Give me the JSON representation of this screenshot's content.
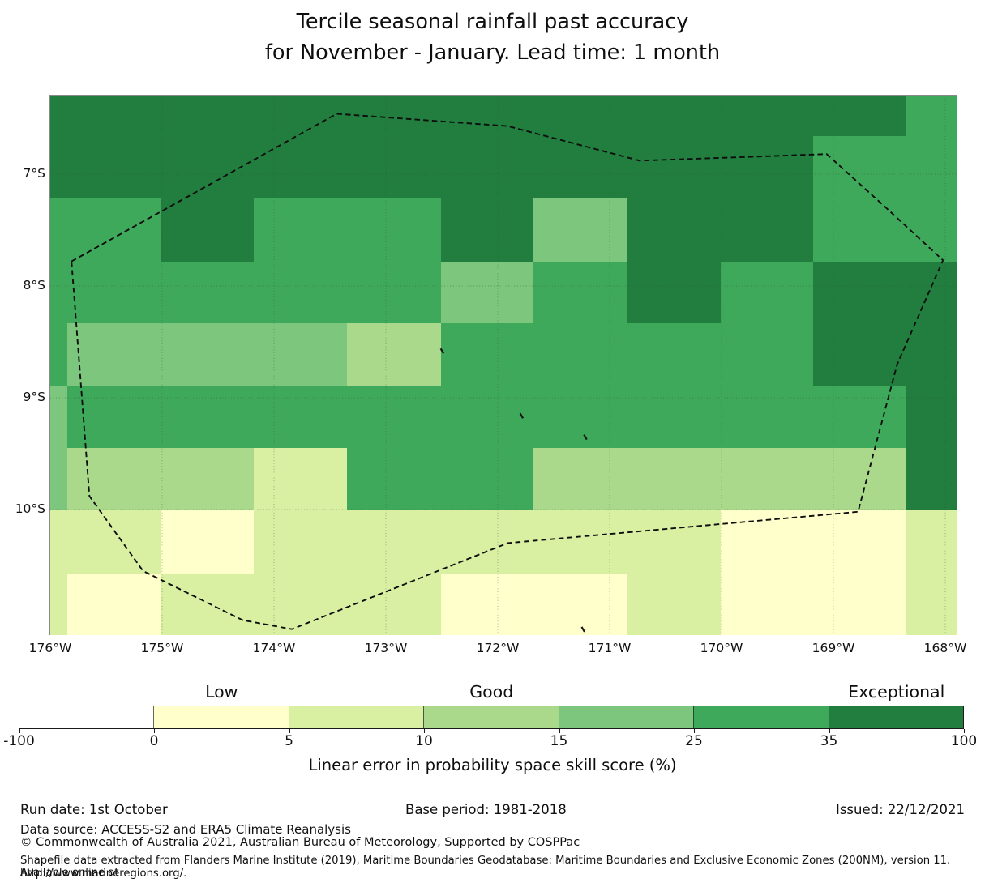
{
  "title": {
    "line1": "Tercile seasonal rainfall past accuracy",
    "line2": "for November - January. Lead time: 1 month"
  },
  "chart_data": {
    "type": "heatmap",
    "title": "Tercile seasonal rainfall past accuracy for November - January. Lead time: 1 month",
    "x_axis": {
      "tick_labels": [
        "176°W",
        "175°W",
        "174°W",
        "173°W",
        "172°W",
        "171°W",
        "170°W",
        "169°W",
        "168°W"
      ],
      "tick_lons_w": [
        176,
        175,
        174,
        173,
        172,
        171,
        170,
        169,
        168
      ]
    },
    "y_axis": {
      "tick_labels": [
        "7°S",
        "8°S",
        "9°S",
        "10°S"
      ],
      "tick_lats_s": [
        7,
        8,
        9,
        10
      ]
    },
    "grid": {
      "lon_edges_w": [
        176.0,
        175.85,
        175.01,
        174.18,
        173.35,
        172.51,
        171.68,
        170.85,
        170.01,
        169.18,
        168.35,
        167.9
      ],
      "lat_edges_s": [
        6.3,
        6.66,
        7.22,
        7.78,
        8.33,
        8.89,
        9.45,
        10.01,
        10.57,
        11.12
      ],
      "bins": {
        "D": "35-100",
        "M": "25-35",
        "L": "15-25",
        "Y": "10-15",
        "P": "5-10",
        "W": "0-5"
      },
      "palette": {
        "D": "#217e3e",
        "M": "#3fa95b",
        "L": "#7cc77d",
        "Y": "#abd98c",
        "P": "#d9efa2",
        "W": "#ffffcc"
      },
      "categories": [
        [
          "D",
          "D",
          "D",
          "D",
          "D",
          "D",
          "D",
          "D",
          "D",
          "D",
          "M"
        ],
        [
          "D",
          "D",
          "D",
          "D",
          "D",
          "D",
          "D",
          "D",
          "D",
          "M",
          "M"
        ],
        [
          "M",
          "M",
          "D",
          "M",
          "M",
          "D",
          "L",
          "D",
          "D",
          "M",
          "M"
        ],
        [
          "M",
          "M",
          "M",
          "M",
          "M",
          "L",
          "M",
          "D",
          "M",
          "D",
          "D"
        ],
        [
          "M",
          "L",
          "L",
          "L",
          "Y",
          "M",
          "M",
          "M",
          "M",
          "D",
          "D"
        ],
        [
          "L",
          "M",
          "M",
          "M",
          "M",
          "M",
          "M",
          "M",
          "M",
          "M",
          "D"
        ],
        [
          "L",
          "Y",
          "Y",
          "P",
          "M",
          "M",
          "Y",
          "Y",
          "Y",
          "Y",
          "D"
        ],
        [
          "P",
          "P",
          "W",
          "P",
          "P",
          "P",
          "P",
          "P",
          "W",
          "W",
          "P"
        ],
        [
          "P",
          "W",
          "P",
          "P",
          "P",
          "W",
          "W",
          "P",
          "W",
          "W",
          "P"
        ]
      ]
    },
    "eez_boundary_lonlat": [
      [
        175.81,
        7.78
      ],
      [
        173.44,
        6.46
      ],
      [
        171.91,
        6.57
      ],
      [
        170.73,
        6.88
      ],
      [
        169.06,
        6.82
      ],
      [
        168.53,
        7.3
      ],
      [
        168.02,
        7.77
      ],
      [
        168.43,
        8.7
      ],
      [
        168.78,
        10.02
      ],
      [
        171.91,
        10.3
      ],
      [
        173.84,
        11.07
      ],
      [
        174.28,
        10.99
      ],
      [
        175.17,
        10.55
      ],
      [
        175.65,
        9.88
      ]
    ],
    "islands_lonlat": [
      [
        172.51,
        8.56
      ],
      [
        171.8,
        9.14
      ],
      [
        171.23,
        9.33
      ],
      [
        171.25,
        11.05
      ]
    ],
    "graticule": {
      "lons_w": [
        175,
        174,
        173,
        172,
        171,
        170,
        169,
        168
      ],
      "lats_s": [
        7,
        8,
        9,
        10
      ]
    },
    "colorbar": {
      "tick_labels": [
        "-100",
        "0",
        "5",
        "10",
        "15",
        "25",
        "35",
        "100"
      ],
      "segment_colors": [
        "#ffffff",
        "#ffffcc",
        "#d9efa2",
        "#abd98c",
        "#7cc77d",
        "#3fa95b",
        "#217e3e"
      ],
      "category_labels": [
        {
          "text": "Low",
          "segment_index": 1
        },
        {
          "text": "Good",
          "segment_index": 3
        },
        {
          "text": "Exceptional",
          "segment_index": 6
        }
      ],
      "axis_label": "Linear error in probability space skill score (%)"
    }
  },
  "footer": {
    "run_date": "Run date: 1st October",
    "base_period": "Base period: 1981-2018",
    "issued": "Issued: 22/12/2021",
    "data_source": "Data source: ACCESS-S2 and ERA5 Climate Reanalysis",
    "copyright": "© Commonwealth of Australia 2021, Australian Bureau of Meteorology, Supported by COSPPac",
    "shapefile_line1": "Shapefile data extracted from Flanders Marine Institute (2019), Maritime Boundaries Geodatabase: Maritime Boundaries and Exclusive Economic Zones (200NM), version 11. Available online at",
    "shapefile_line2": "http://www.marineregions.org/."
  }
}
